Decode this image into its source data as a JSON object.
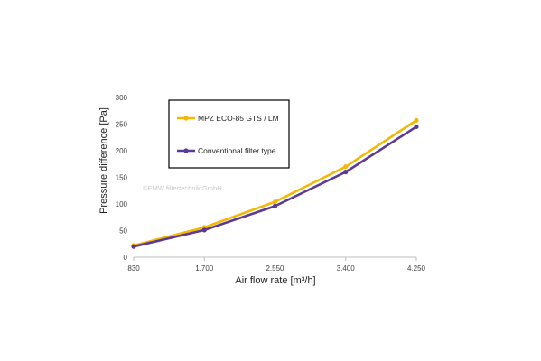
{
  "chart_data": {
    "type": "line",
    "categories": [
      "830",
      "1.700",
      "2.550",
      "3.400",
      "4.250"
    ],
    "series": [
      {
        "name": "MPZ ECO-85 GTS / LM",
        "color": "#f5b800",
        "values": [
          22,
          56,
          104,
          170,
          257
        ]
      },
      {
        "name": "Conventional filter type",
        "color": "#5b3a96",
        "values": [
          20,
          51,
          96,
          160,
          245
        ]
      }
    ],
    "xlabel": "Air flow rate [m³/h]",
    "ylabel": "Pressure difference [Pa]",
    "ylim": [
      0,
      300
    ],
    "yticks": [
      0,
      50,
      100,
      150,
      200,
      250,
      300
    ],
    "grid": false,
    "legend": "top-left (boxed, inside plot)",
    "watermark": "©EMW filtertechnik GmbH"
  }
}
